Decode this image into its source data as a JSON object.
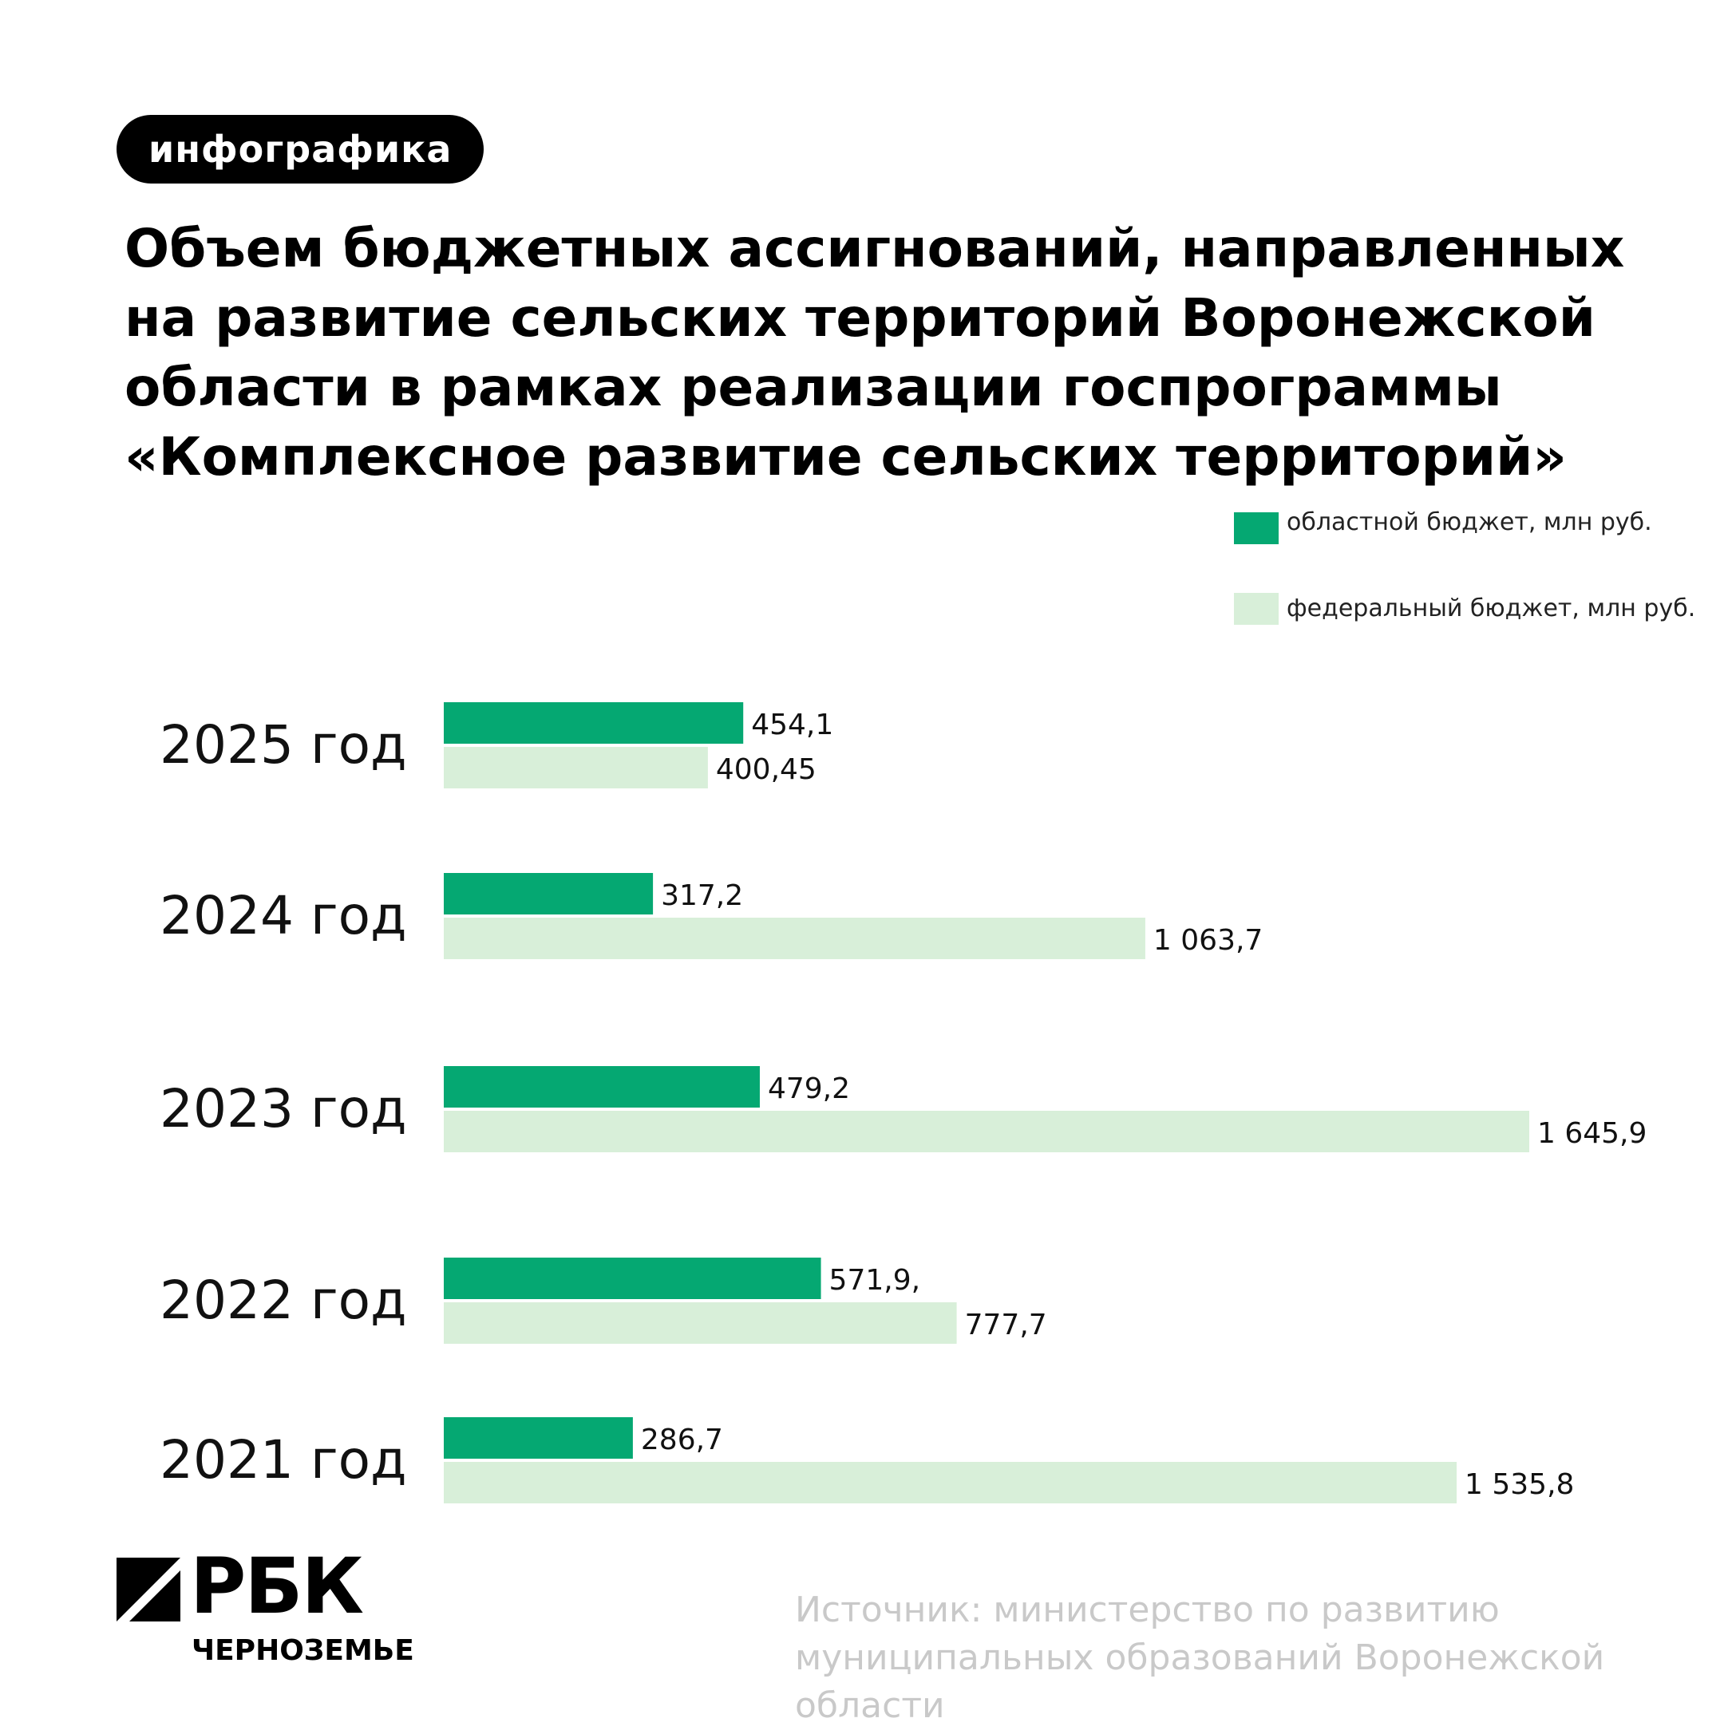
{
  "header": {
    "tag": "инфографика",
    "title": "Объем бюджетных ассигнований, направленных на развитие сельских территорий Воронежской области в рамках реализации госпрограммы «Комплексное развитие сельских территорий»"
  },
  "legend": {
    "regional": "областной бюджет, млн руб.",
    "federal": "федеральный бюджет, млн руб."
  },
  "colors": {
    "regional": "#05a872",
    "federal": "#d8efd9"
  },
  "chart_data": {
    "type": "bar",
    "orientation": "horizontal",
    "categories": [
      "2025 год",
      "2024 год",
      "2023 год",
      "2022 год",
      "2021 год"
    ],
    "series": [
      {
        "name": "областной бюджет, млн руб.",
        "values": [
          454.1,
          317.2,
          479.2,
          571.9,
          286.7
        ],
        "labels": [
          "454,1",
          "317,2",
          "479,2",
          "571,9,",
          "286,7"
        ]
      },
      {
        "name": "федеральный бюджет, млн руб.",
        "values": [
          400.45,
          1063.7,
          1645.9,
          777.7,
          1535.8
        ],
        "labels": [
          "400,45",
          "1 063,7",
          "1 645,9",
          "777,7",
          "1 535,8"
        ]
      }
    ],
    "grid": false,
    "legend_position": "top-right"
  },
  "footer": {
    "logo_main": "РБК",
    "logo_sub": "ЧЕРНОЗЕМЬЕ",
    "source": "Источник: министерство по развитию муниципальных образований Воронежской области"
  }
}
